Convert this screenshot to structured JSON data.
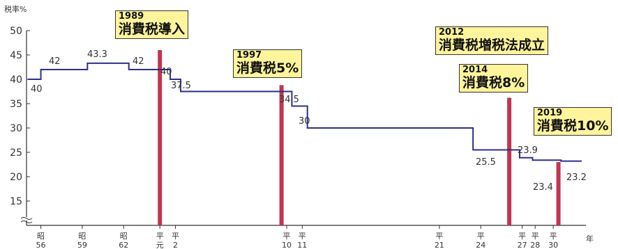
{
  "chart_data": {
    "type": "line",
    "ylabel": "税率%",
    "xlabel": "年",
    "ylim": [
      10,
      50
    ],
    "yticks": [
      15,
      20,
      25,
      30,
      35,
      40,
      45,
      50
    ],
    "colors": {
      "line": "#2b2f8e",
      "bar": "#c2354f",
      "callout_bg": "#fdf49c"
    },
    "series": [
      {
        "type": "step",
        "points": [
          {
            "t": 0,
            "value": 40,
            "label": "40"
          },
          {
            "t": 0.5,
            "value": 42,
            "label": "42"
          },
          {
            "t": 2.3,
            "value": 43.3,
            "label": "43.3"
          },
          {
            "t": 3.9,
            "value": 42,
            "label": "42"
          },
          {
            "t": 5.5,
            "value": 40,
            "label": "40"
          },
          {
            "t": 5.9,
            "value": 37.5,
            "label": "37.5"
          },
          {
            "t": 10.2,
            "value": 34.5,
            "label": "34.5"
          },
          {
            "t": 10.8,
            "value": 30,
            "label": "30"
          },
          {
            "t": 17.2,
            "value": 25.5,
            "label": "25.5"
          },
          {
            "t": 19.0,
            "value": 23.9,
            "label": "23.9"
          },
          {
            "t": 19.5,
            "value": 23.4,
            "label": "23.4"
          },
          {
            "t": 20.6,
            "value": 23.2,
            "label": "23.2"
          }
        ],
        "end_t": 21.4
      }
    ],
    "events": [
      {
        "t": 5.1,
        "year": "1989",
        "text": "消費税導入"
      },
      {
        "t": 9.8,
        "year": "1997",
        "text": "消費税5%"
      },
      {
        "t": 18.6,
        "year": "2014",
        "text": "消費税8%"
      },
      {
        "t": 20.5,
        "year": "2019",
        "text": "消費税10%"
      }
    ],
    "note": {
      "year": "2012",
      "text": "消費税増税法成立"
    },
    "era_ticks": [
      {
        "t": 0.5,
        "top": "昭",
        "bottom": "56"
      },
      {
        "t": 2.1,
        "top": "昭",
        "bottom": "59"
      },
      {
        "t": 3.7,
        "top": "昭",
        "bottom": "62"
      },
      {
        "t": 5.1,
        "top": "平",
        "bottom": "元"
      },
      {
        "t": 5.7,
        "top": "平",
        "bottom": "2"
      },
      {
        "t": 10.0,
        "top": "平",
        "bottom": "10"
      },
      {
        "t": 10.6,
        "top": "平",
        "bottom": "11"
      },
      {
        "t": 15.9,
        "top": "平",
        "bottom": "21"
      },
      {
        "t": 17.5,
        "top": "平",
        "bottom": "24"
      },
      {
        "t": 19.1,
        "top": "平",
        "bottom": "27"
      },
      {
        "t": 19.6,
        "top": "平",
        "bottom": "28"
      },
      {
        "t": 20.3,
        "top": "平",
        "bottom": "30"
      }
    ]
  }
}
